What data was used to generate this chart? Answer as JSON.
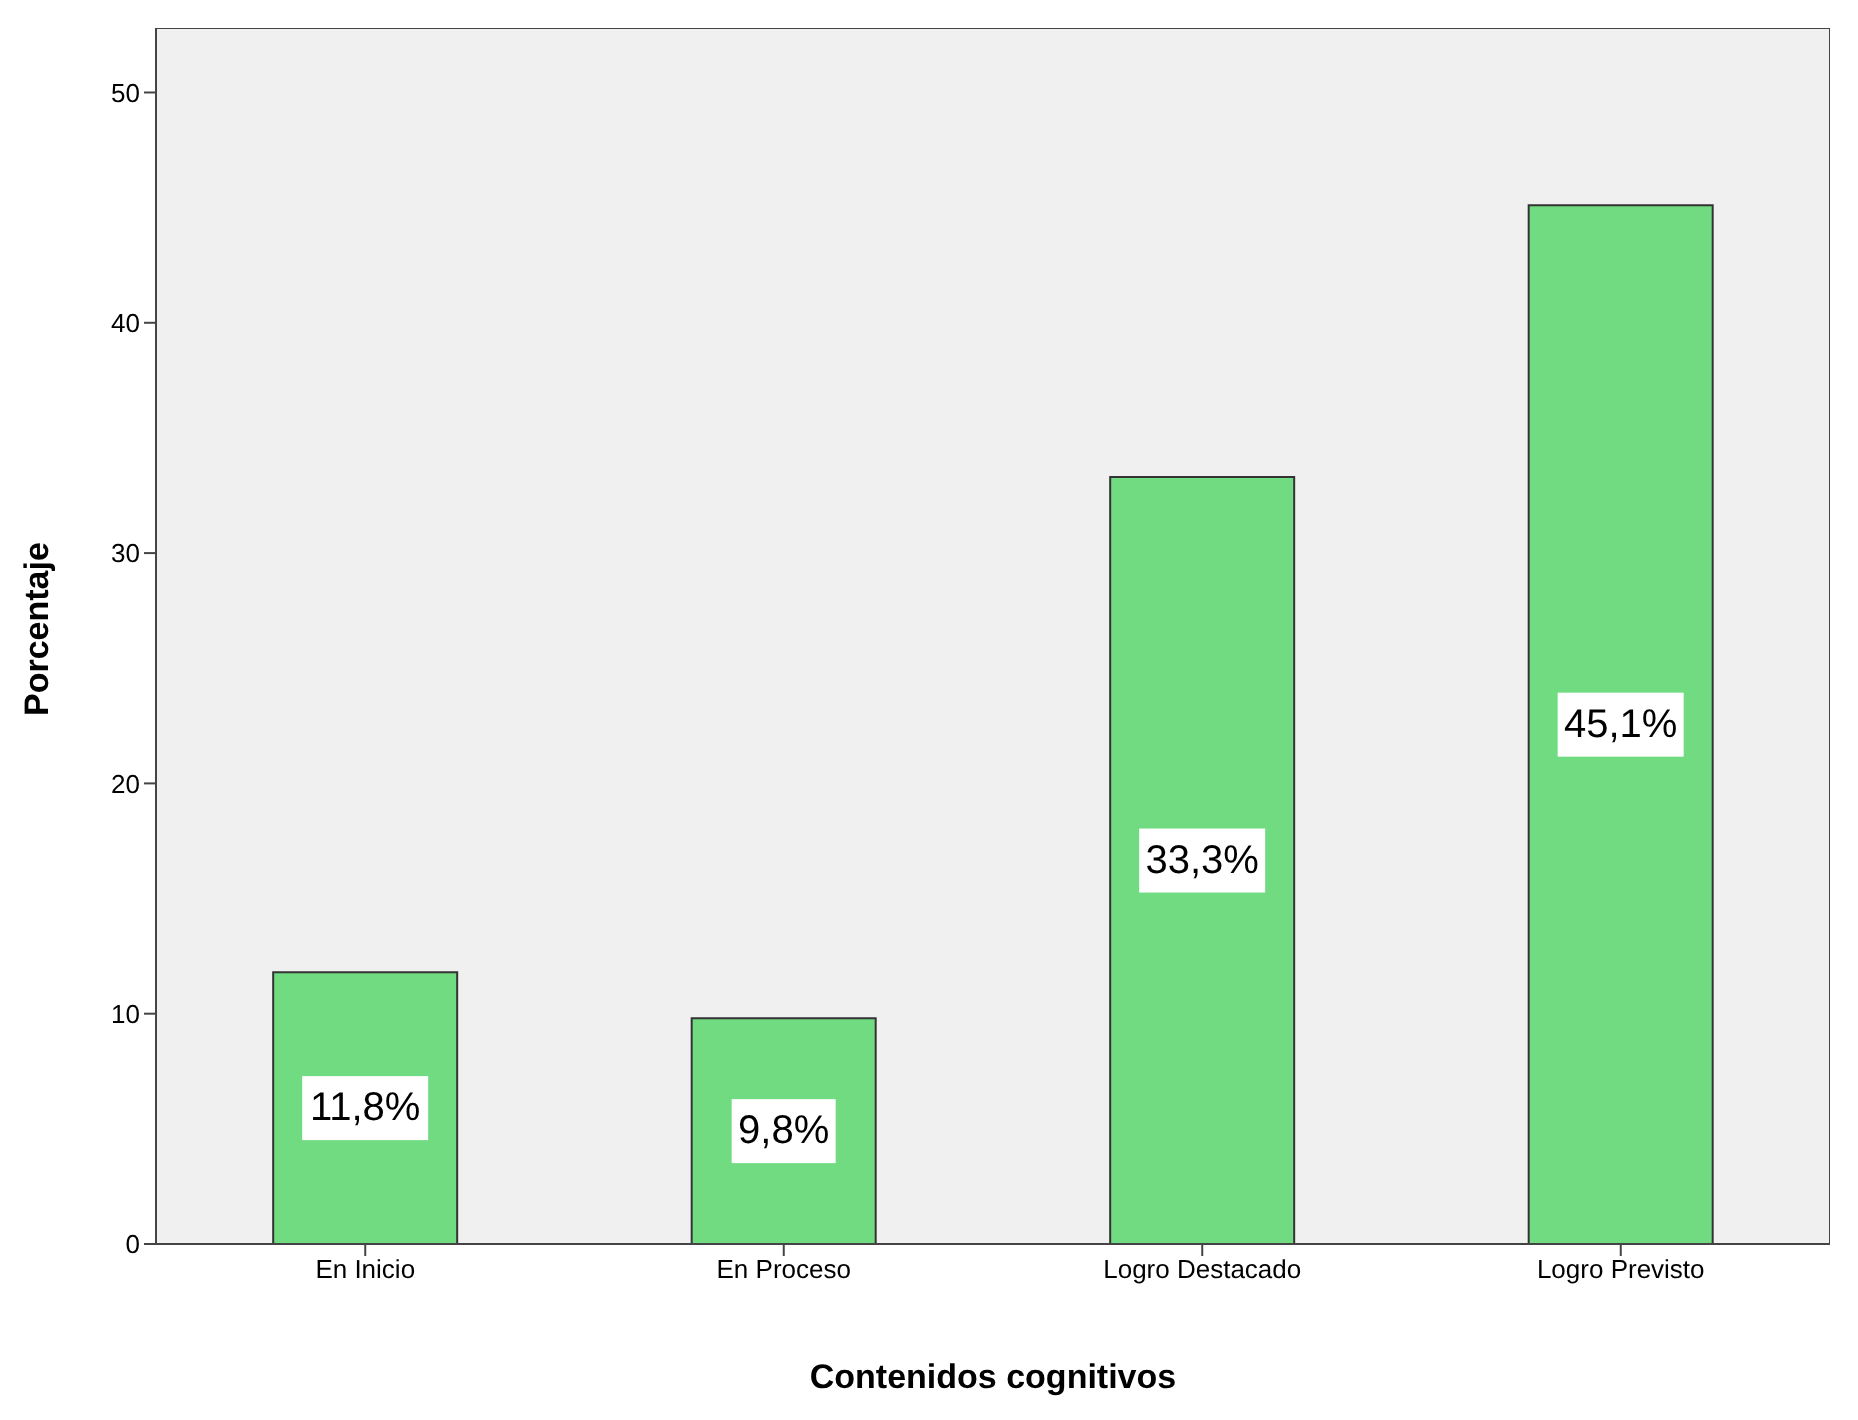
{
  "chart_data": {
    "type": "bar",
    "xlabel": "Contenidos cognitivos",
    "ylabel": "Porcentaje",
    "categories": [
      "En Inicio",
      "En Proceso",
      "Logro Destacado",
      "Logro Previsto"
    ],
    "values": [
      11.8,
      9.8,
      33.3,
      45.1
    ],
    "value_labels": [
      "11,8%",
      "9,8%",
      "33,3%",
      "45,1%"
    ],
    "color": "#70db80",
    "ylim": [
      0,
      52.8
    ],
    "yticks": [
      0,
      10,
      20,
      30,
      40,
      50
    ],
    "grid": false,
    "legend": false
  }
}
